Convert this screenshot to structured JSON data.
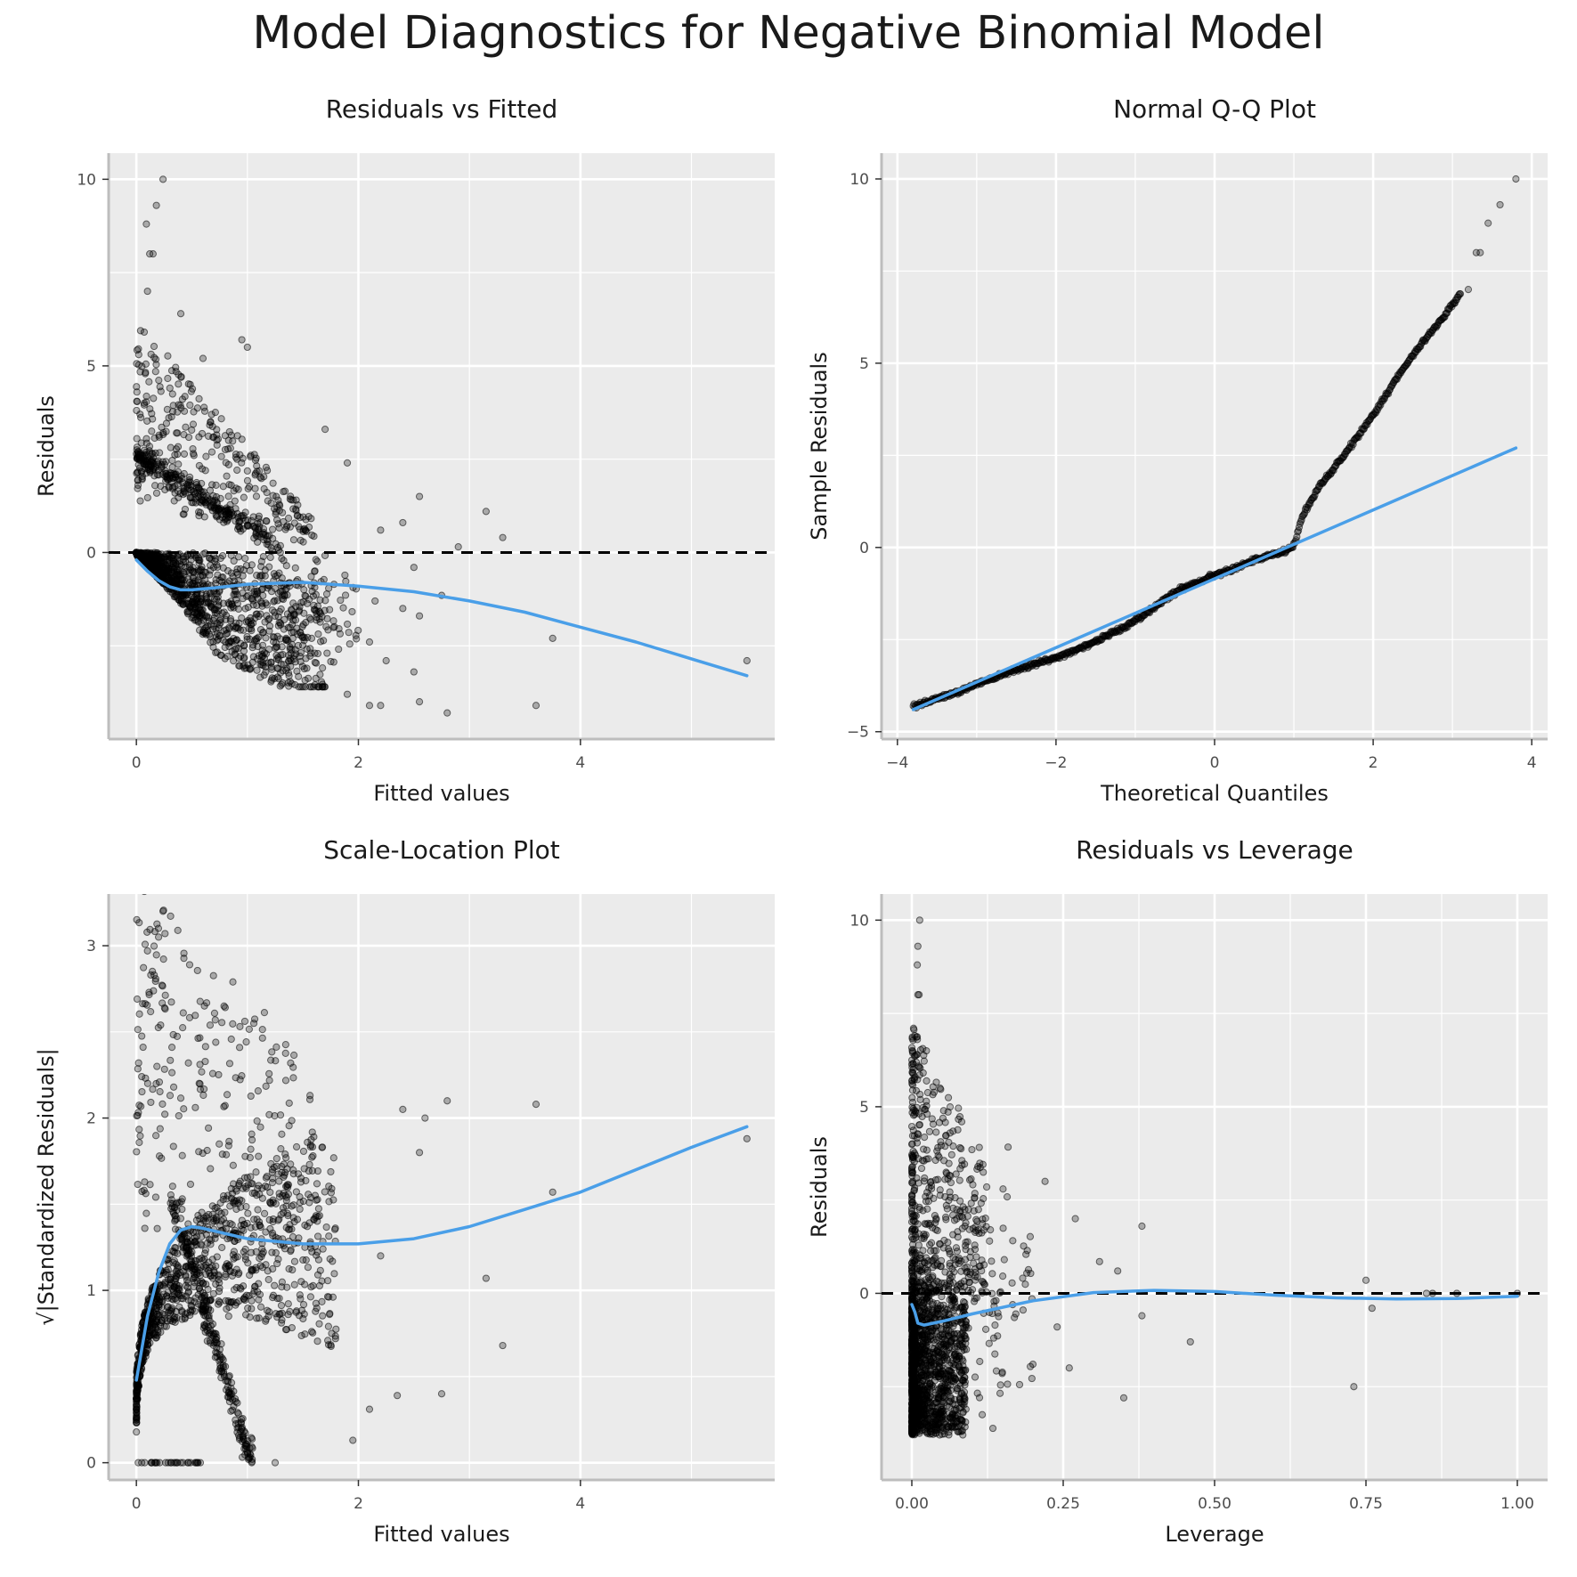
{
  "title": "Model Diagnostics for Negative Binomial Model",
  "colors": {
    "panel_bg": "#ebebeb",
    "grid": "#ffffff",
    "points": "#000000",
    "smooth": "#4a9fe8",
    "refline": "#000000",
    "axis": "#bdbdbd"
  },
  "chart_data": [
    {
      "type": "scatter",
      "title": "Residuals vs Fitted",
      "xlabel": "Fitted values",
      "ylabel": "Residuals",
      "xlim": [
        -0.25,
        5.75
      ],
      "ylim": [
        -5.0,
        10.7
      ],
      "xticks": [
        0,
        2,
        4
      ],
      "xtick_labels": [
        "0",
        "2",
        "4"
      ],
      "yticks": [
        0,
        5,
        10
      ],
      "ytick_labels": [
        "0",
        "5",
        "10"
      ],
      "hline": 0,
      "smooth": {
        "x": [
          0,
          0.1,
          0.2,
          0.3,
          0.4,
          0.5,
          0.7,
          1.0,
          1.5,
          2.0,
          2.5,
          3.0,
          3.5,
          4.0,
          4.5,
          5.0,
          5.5
        ],
        "y": [
          -0.2,
          -0.5,
          -0.75,
          -0.92,
          -1.0,
          -1.0,
          -0.95,
          -0.85,
          -0.8,
          -0.9,
          -1.05,
          -1.3,
          -1.6,
          -2.0,
          -2.4,
          -2.85,
          -3.3
        ]
      },
      "highlight_points": [
        {
          "x": 0.24,
          "y": 10.0
        },
        {
          "x": 0.18,
          "y": 9.3
        },
        {
          "x": 0.09,
          "y": 8.8
        },
        {
          "x": 0.12,
          "y": 8.0
        },
        {
          "x": 0.15,
          "y": 8.0
        },
        {
          "x": 0.1,
          "y": 7.0
        },
        {
          "x": 0.4,
          "y": 6.4
        },
        {
          "x": 0.6,
          "y": 5.2
        },
        {
          "x": 0.95,
          "y": 5.7
        },
        {
          "x": 1.0,
          "y": 5.5
        },
        {
          "x": 1.7,
          "y": 3.3
        },
        {
          "x": 1.9,
          "y": 2.4
        },
        {
          "x": 2.55,
          "y": 1.5
        },
        {
          "x": 3.15,
          "y": 1.1
        },
        {
          "x": 2.9,
          "y": 0.15
        },
        {
          "x": 3.3,
          "y": 0.4
        },
        {
          "x": 2.4,
          "y": 0.8
        },
        {
          "x": 2.2,
          "y": 0.6
        },
        {
          "x": 2.5,
          "y": -0.4
        },
        {
          "x": 2.55,
          "y": -1.7
        },
        {
          "x": 2.4,
          "y": -1.5
        },
        {
          "x": 2.75,
          "y": -1.15
        },
        {
          "x": 2.15,
          "y": -1.3
        },
        {
          "x": 2.1,
          "y": -2.4
        },
        {
          "x": 2.25,
          "y": -2.9
        },
        {
          "x": 2.5,
          "y": -3.2
        },
        {
          "x": 3.75,
          "y": -2.3
        },
        {
          "x": 5.5,
          "y": -2.9
        },
        {
          "x": 3.6,
          "y": -4.1
        },
        {
          "x": 2.8,
          "y": -4.3
        },
        {
          "x": 2.55,
          "y": -4.0
        },
        {
          "x": 2.2,
          "y": -4.1
        },
        {
          "x": 2.1,
          "y": -4.1
        },
        {
          "x": 1.9,
          "y": -3.8
        }
      ]
    },
    {
      "type": "scatter",
      "title": "Normal Q-Q Plot",
      "xlabel": "Theoretical Quantiles",
      "ylabel": "Sample Residuals",
      "xlim": [
        -4.2,
        4.2
      ],
      "ylim": [
        -5.2,
        10.7
      ],
      "xticks": [
        -4,
        -2,
        0,
        2,
        4
      ],
      "xtick_labels": [
        "−4",
        "−2",
        "0",
        "2",
        "4"
      ],
      "yticks": [
        -5,
        0,
        5,
        10
      ],
      "ytick_labels": [
        "−5",
        "0",
        "5",
        "10"
      ],
      "reference_line": {
        "x": [
          -3.8,
          3.8
        ],
        "y": [
          -4.4,
          2.7
        ]
      },
      "sample_curve": {
        "x": [
          -3.8,
          -3.5,
          -3.2,
          -3.0,
          -2.5,
          -2.0,
          -1.5,
          -1.0,
          -0.5,
          0.0,
          0.5,
          0.9,
          1.0,
          1.1,
          1.3,
          1.6,
          2.0,
          2.3,
          2.6,
          2.9,
          3.0,
          3.1
        ],
        "y": [
          -4.3,
          -4.1,
          -3.9,
          -3.7,
          -3.3,
          -3.0,
          -2.55,
          -2.0,
          -1.2,
          -0.75,
          -0.35,
          -0.1,
          0.05,
          0.8,
          1.6,
          2.4,
          3.6,
          4.6,
          5.5,
          6.3,
          6.6,
          6.9
        ]
      },
      "tail_points": [
        {
          "x": 3.2,
          "y": 7.0
        },
        {
          "x": 3.3,
          "y": 8.0
        },
        {
          "x": 3.35,
          "y": 8.0
        },
        {
          "x": 3.45,
          "y": 8.8
        },
        {
          "x": 3.6,
          "y": 9.3
        },
        {
          "x": 3.8,
          "y": 10.0
        }
      ]
    },
    {
      "type": "scatter",
      "title": "Scale-Location Plot",
      "xlabel": "Fitted values",
      "ylabel": "√|Standardized Residuals|",
      "xlim": [
        -0.25,
        5.75
      ],
      "ylim": [
        -0.1,
        3.3
      ],
      "xticks": [
        0,
        2,
        4
      ],
      "xtick_labels": [
        "0",
        "2",
        "4"
      ],
      "yticks": [
        0,
        1,
        2,
        3
      ],
      "ytick_labels": [
        "0",
        "1",
        "2",
        "3"
      ],
      "smooth": {
        "x": [
          0,
          0.1,
          0.2,
          0.3,
          0.4,
          0.5,
          0.6,
          0.8,
          1.0,
          1.5,
          2.0,
          2.5,
          3.0,
          3.5,
          4.0,
          4.5,
          5.0,
          5.5
        ],
        "y": [
          0.48,
          0.85,
          1.1,
          1.27,
          1.35,
          1.37,
          1.36,
          1.33,
          1.3,
          1.27,
          1.27,
          1.3,
          1.37,
          1.47,
          1.57,
          1.7,
          1.83,
          1.95
        ]
      },
      "highlight_points": [
        {
          "x": 0.24,
          "y": 3.2
        },
        {
          "x": 0.2,
          "y": 3.05
        },
        {
          "x": 0.1,
          "y": 2.97
        },
        {
          "x": 0.13,
          "y": 2.83
        },
        {
          "x": 0.16,
          "y": 2.83
        },
        {
          "x": 2.4,
          "y": 2.05
        },
        {
          "x": 2.6,
          "y": 2.0
        },
        {
          "x": 2.8,
          "y": 2.1
        },
        {
          "x": 3.6,
          "y": 2.08
        },
        {
          "x": 3.75,
          "y": 1.57
        },
        {
          "x": 5.5,
          "y": 1.88
        },
        {
          "x": 3.15,
          "y": 1.07
        },
        {
          "x": 3.3,
          "y": 0.68
        },
        {
          "x": 2.75,
          "y": 0.4
        },
        {
          "x": 2.35,
          "y": 0.39
        },
        {
          "x": 2.1,
          "y": 0.31
        },
        {
          "x": 1.95,
          "y": 0.13
        },
        {
          "x": 1.25,
          "y": 0.0
        },
        {
          "x": 2.2,
          "y": 1.2
        },
        {
          "x": 2.55,
          "y": 1.8
        }
      ]
    },
    {
      "type": "scatter",
      "title": "Residuals vs Leverage",
      "xlabel": "Leverage",
      "ylabel": "Residuals",
      "xlim": [
        -0.05,
        1.05
      ],
      "ylim": [
        -5.0,
        10.7
      ],
      "xticks": [
        0,
        0.25,
        0.5,
        0.75,
        1.0
      ],
      "xtick_labels": [
        "0.00",
        "0.25",
        "0.50",
        "0.75",
        "1.00"
      ],
      "yticks": [
        0,
        5,
        10
      ],
      "ytick_labels": [
        "0",
        "5",
        "10"
      ],
      "hline": 0,
      "smooth": {
        "x": [
          0.0,
          0.005,
          0.01,
          0.02,
          0.05,
          0.1,
          0.2,
          0.3,
          0.4,
          0.5,
          0.6,
          0.7,
          0.8,
          0.9,
          1.0
        ],
        "y": [
          -0.3,
          -0.5,
          -0.8,
          -0.85,
          -0.75,
          -0.55,
          -0.2,
          0.02,
          0.08,
          0.05,
          -0.05,
          -0.12,
          -0.15,
          -0.14,
          -0.08
        ]
      },
      "highlight_points": [
        {
          "x": 0.013,
          "y": 10.0
        },
        {
          "x": 0.01,
          "y": 9.3
        },
        {
          "x": 0.009,
          "y": 8.8
        },
        {
          "x": 0.01,
          "y": 8.0
        },
        {
          "x": 0.012,
          "y": 8.0
        },
        {
          "x": 0.22,
          "y": 3.0
        },
        {
          "x": 0.27,
          "y": 2.0
        },
        {
          "x": 0.38,
          "y": 1.8
        },
        {
          "x": 0.31,
          "y": 0.85
        },
        {
          "x": 0.34,
          "y": 0.6
        },
        {
          "x": 0.75,
          "y": 0.35
        },
        {
          "x": 0.76,
          "y": -0.4
        },
        {
          "x": 0.85,
          "y": 0.0
        },
        {
          "x": 0.86,
          "y": 0.0
        },
        {
          "x": 0.9,
          "y": 0.0
        },
        {
          "x": 1.0,
          "y": 0.0
        },
        {
          "x": 0.46,
          "y": -1.3
        },
        {
          "x": 0.38,
          "y": -0.6
        },
        {
          "x": 0.35,
          "y": -2.8
        },
        {
          "x": 0.73,
          "y": -2.5
        },
        {
          "x": 0.26,
          "y": -2.0
        },
        {
          "x": 0.24,
          "y": -0.9
        },
        {
          "x": 0.2,
          "y": -1.9
        }
      ]
    }
  ]
}
